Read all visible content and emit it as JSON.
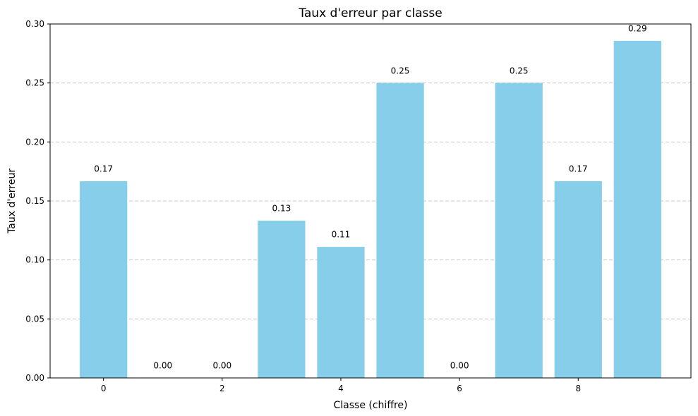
{
  "chart_data": {
    "type": "bar",
    "title": "Taux d'erreur par classe",
    "xlabel": "Classe (chiffre)",
    "ylabel": "Taux d'erreur",
    "categories": [
      0,
      1,
      2,
      3,
      4,
      5,
      6,
      7,
      8,
      9
    ],
    "values": [
      0.1667,
      0.0,
      0.0,
      0.1333,
      0.1111,
      0.25,
      0.0,
      0.25,
      0.1667,
      0.2857
    ],
    "data_labels": [
      "0.17",
      "0.00",
      "0.00",
      "0.13",
      "0.11",
      "0.25",
      "0.00",
      "0.25",
      "0.17",
      "0.29"
    ],
    "xlim": [
      -0.9,
      9.9
    ],
    "ylim": [
      0,
      0.3
    ],
    "x_ticks": [
      0,
      2,
      4,
      6,
      8
    ],
    "x_tick_labels": [
      "0",
      "2",
      "4",
      "6",
      "8"
    ],
    "y_ticks": [
      0,
      0.05,
      0.1,
      0.15,
      0.2,
      0.25,
      0.3
    ],
    "y_tick_labels": [
      "0.00",
      "0.05",
      "0.10",
      "0.15",
      "0.20",
      "0.25",
      "0.30"
    ],
    "grid": "y-dashed",
    "bar_color": "#87ceeb",
    "grid_color": "#c8c8c8"
  }
}
